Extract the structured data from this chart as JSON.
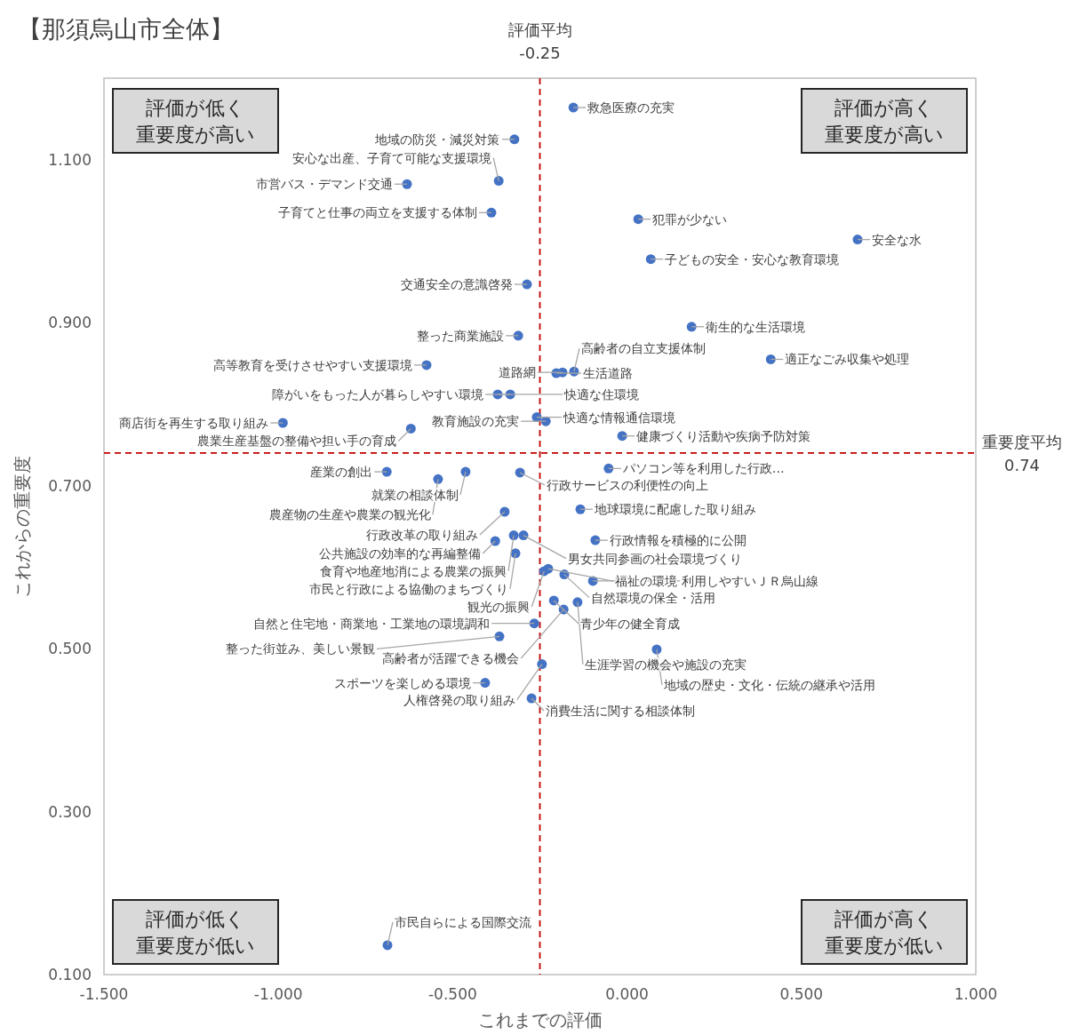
{
  "chart_data": {
    "type": "scatter",
    "title": "【那須烏山市全体】",
    "xlabel": "これまでの評価",
    "ylabel": "これからの重要度",
    "xlim": [
      -1.5,
      1.0
    ],
    "ylim": [
      0.1,
      1.2
    ],
    "xticks": [
      {
        "value": -1.5,
        "label": "-1.500"
      },
      {
        "value": -1.0,
        "label": "-1.000"
      },
      {
        "value": -0.5,
        "label": "-0.500"
      },
      {
        "value": 0,
        "label": "0.000"
      },
      {
        "value": 0.5,
        "label": "0.500"
      },
      {
        "value": 1.0,
        "label": "1.000"
      }
    ],
    "yticks": [
      {
        "value": 0.1,
        "label": "0.100"
      },
      {
        "value": 0.3,
        "label": "0.300"
      },
      {
        "value": 0.5,
        "label": "0.500"
      },
      {
        "value": 0.7,
        "label": "0.700"
      },
      {
        "value": 0.9,
        "label": "0.900"
      },
      {
        "value": 1.1,
        "label": "1.100"
      }
    ],
    "marker": "circle",
    "color": "#4472c4",
    "x": [
      -0.323,
      -0.154,
      -0.631,
      -0.368,
      -0.389,
      0.032,
      0.661,
      0.068,
      -0.287,
      0.185,
      -0.312,
      -0.575,
      -0.203,
      -0.185,
      -0.152,
      0.412,
      -0.335,
      -0.371,
      -0.259,
      -0.233,
      -0.987,
      -0.62,
      -0.689,
      -0.463,
      -0.014,
      -0.053,
      -0.307,
      -0.542,
      -0.134,
      -0.351,
      -0.091,
      -0.378,
      -0.325,
      -0.297,
      -0.32,
      -0.238,
      -0.226,
      -0.18,
      -0.21,
      -0.098,
      -0.142,
      -0.182,
      0.085,
      -0.244,
      -0.266,
      -0.366,
      -0.407,
      -0.274,
      -0.687
    ],
    "values": [
      1.125,
      1.164,
      1.07,
      1.074,
      1.035,
      1.027,
      1.002,
      0.978,
      0.947,
      0.895,
      0.884,
      0.848,
      0.838,
      0.839,
      0.84,
      0.855,
      0.812,
      0.812,
      0.784,
      0.779,
      0.777,
      0.77,
      0.717,
      0.717,
      0.761,
      0.721,
      0.716,
      0.708,
      0.671,
      0.668,
      0.633,
      0.632,
      0.639,
      0.639,
      0.617,
      0.595,
      0.598,
      0.591,
      0.559,
      0.583,
      0.557,
      0.548,
      0.499,
      0.481,
      0.531,
      0.515,
      0.458,
      0.439,
      0.136
    ],
    "ref_lines": [
      {
        "axis": "x",
        "value": -0.25,
        "label": "評価平均\n-0.25",
        "color": "#c00000",
        "line_style": "dashed"
      },
      {
        "axis": "y",
        "value": 0.74,
        "label": "重要度平均\n0.74",
        "color": "#c00000",
        "line_style": "dashed"
      }
    ],
    "annotations": [
      "評価が低く重要度が高い",
      "評価が高く重要度が高い",
      "評価が低く重要度が低い",
      "評価が高く重要度が低い",
      {
        "text": "地域の防災・減災対策",
        "x": -0.323,
        "y": 1.125
      },
      {
        "text": "救急医療の充実",
        "x": -0.154,
        "y": 1.164
      },
      {
        "text": "市営バス・デマンド交通",
        "x": -0.631,
        "y": 1.07
      },
      {
        "text": "安心な出産、子育て可能な支援環境",
        "x": -0.368,
        "y": 1.074
      },
      {
        "text": "子育てと仕事の両立を支援する体制",
        "x": -0.389,
        "y": 1.035
      },
      {
        "text": "犯罪が少ない",
        "x": 0.032,
        "y": 1.027
      },
      {
        "text": "安全な水",
        "x": 0.661,
        "y": 1.002
      },
      {
        "text": "子どもの安全・安心な教育環境",
        "x": 0.068,
        "y": 0.978
      },
      {
        "text": "交通安全の意識啓発",
        "x": -0.287,
        "y": 0.947
      },
      {
        "text": "衛生的な生活環境",
        "x": 0.185,
        "y": 0.895
      },
      {
        "text": "整った商業施設",
        "x": -0.312,
        "y": 0.884
      },
      {
        "text": "高等教育を受けさせやすい支援環境",
        "x": -0.575,
        "y": 0.848
      },
      {
        "text": "生活道路",
        "x": -0.203,
        "y": 0.838
      },
      {
        "text": "道路網",
        "x": -0.185,
        "y": 0.839
      },
      {
        "text": "高齢者の自立支援体制",
        "x": -0.152,
        "y": 0.84
      },
      {
        "text": "適正なごみ収集や処理",
        "x": 0.412,
        "y": 0.855
      },
      {
        "text": "障がいをもった人が暮らしやすい環境",
        "x": -0.335,
        "y": 0.812
      },
      {
        "text": "快適な住環境",
        "x": -0.371,
        "y": 0.812
      },
      {
        "text": "快適な情報通信環境",
        "x": -0.259,
        "y": 0.784
      },
      {
        "text": "教育施設の充実",
        "x": -0.233,
        "y": 0.779
      },
      {
        "text": "商店街を再生する取り組み",
        "x": -0.987,
        "y": 0.777
      },
      {
        "text": "農業生産基盤の整備や担い手の育成",
        "x": -0.62,
        "y": 0.77
      },
      {
        "text": "産業の創出",
        "x": -0.689,
        "y": 0.717
      },
      {
        "text": "就業の相談体制",
        "x": -0.463,
        "y": 0.717
      },
      {
        "text": "健康づくり活動や疾病予防対策",
        "x": -0.014,
        "y": 0.761
      },
      {
        "text": "パソコン等を利用した行政…",
        "x": -0.053,
        "y": 0.721
      },
      {
        "text": "行政サービスの利便性の向上",
        "x": -0.307,
        "y": 0.716
      },
      {
        "text": "農産物の生産や農業の観光化",
        "x": -0.542,
        "y": 0.708
      },
      {
        "text": "地球環境に配慮した取り組み",
        "x": -0.134,
        "y": 0.671
      },
      {
        "text": "行政改革の取り組み",
        "x": -0.351,
        "y": 0.668
      },
      {
        "text": "行政情報を積極的に公開",
        "x": -0.091,
        "y": 0.633
      },
      {
        "text": "公共施設の効率的な再編整備",
        "x": -0.378,
        "y": 0.632
      },
      {
        "text": "食育や地産地消による農業の振興",
        "x": -0.325,
        "y": 0.639
      },
      {
        "text": "男女共同参画の社会環境づくり",
        "x": -0.297,
        "y": 0.639
      },
      {
        "text": "市民と行政による協働のまちづくり",
        "x": -0.32,
        "y": 0.617
      },
      {
        "text": "観光の振興",
        "x": -0.238,
        "y": 0.595
      },
      {
        "text": "福祉の環境",
        "x": -0.226,
        "y": 0.598
      },
      {
        "text": "自然環境の保全・活用",
        "x": -0.18,
        "y": 0.591
      },
      {
        "text": "青少年の健全育成",
        "x": -0.21,
        "y": 0.559
      },
      {
        "text": "利用しやすいＪＲ烏山線",
        "x": -0.098,
        "y": 0.583
      },
      {
        "text": "生涯学習の機会や施設の充実",
        "x": -0.142,
        "y": 0.557
      },
      {
        "text": "高齢者が活躍できる機会",
        "x": -0.182,
        "y": 0.548
      },
      {
        "text": "地域の歴史・文化・伝統の継承や活用",
        "x": 0.085,
        "y": 0.499
      },
      {
        "text": "人権啓発の取り組み",
        "x": -0.244,
        "y": 0.481
      },
      {
        "text": "自然と住宅地・商業地・工業地の環境調和",
        "x": -0.266,
        "y": 0.531
      },
      {
        "text": "整った街並み、美しい景観",
        "x": -0.366,
        "y": 0.515
      },
      {
        "text": "スポーツを楽しめる環境",
        "x": -0.407,
        "y": 0.458
      },
      {
        "text": "消費生活に関する相談体制",
        "x": -0.274,
        "y": 0.439
      },
      {
        "text": "市民自らによる国際交流",
        "x": -0.687,
        "y": 0.136
      }
    ]
  }
}
